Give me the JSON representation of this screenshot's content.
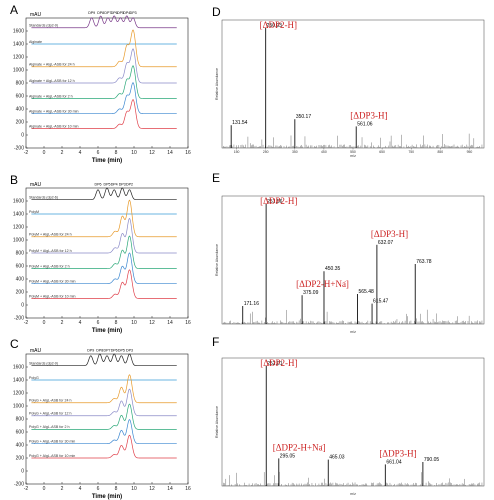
{
  "chart_data": [
    {
      "panel": "A",
      "type": "line",
      "xlabel": "Time (min)",
      "ylabel_unit": "mAU",
      "xlim": [
        -2,
        16
      ],
      "ylim": [
        -200,
        1800
      ],
      "xticks": [
        -2,
        0,
        2,
        4,
        6,
        8,
        10,
        12,
        14,
        16
      ],
      "yticks": [
        -200,
        0,
        200,
        400,
        600,
        800,
        1000,
        1200,
        1400,
        1600
      ],
      "peak_labels": [
        "DP9",
        "DP8",
        "DP7",
        "DP6",
        "DP5",
        "DP4",
        "DP3"
      ],
      "peak_times": [
        5.3,
        6.3,
        7.1,
        7.8,
        8.5,
        9.2,
        9.9
      ],
      "series": [
        {
          "name": "Standards (dp2-9)",
          "color": "#7a3a8a",
          "offset": 1650,
          "kind": "standards"
        },
        {
          "name": "Alginate",
          "color": "#3a9bd8",
          "offset": 1400,
          "kind": "flat"
        },
        {
          "name": "Alginate + AlgL-ASB for 24 h",
          "color": "#e89a2a",
          "offset": 1050,
          "kind": "reaction",
          "amp": 560
        },
        {
          "name": "Alginate + AlgL-ASB for 12 h",
          "color": "#8a8ac8",
          "offset": 800,
          "kind": "reaction",
          "amp": 520
        },
        {
          "name": "Alginate + AlgL-ASB for 2 h",
          "color": "#2aa878",
          "offset": 560,
          "kind": "reaction",
          "amp": 500
        },
        {
          "name": "Alginate + AlgL-ASB for 30 min",
          "color": "#3a86d0",
          "offset": 330,
          "kind": "reaction",
          "amp": 470
        },
        {
          "name": "Alginate + AlgL-ASB for 10 min",
          "color": "#e0404a",
          "offset": 100,
          "kind": "reaction",
          "amp": 440
        }
      ]
    },
    {
      "panel": "B",
      "type": "line",
      "xlabel": "Time (min)",
      "ylabel_unit": "mAU",
      "xlim": [
        -2,
        16
      ],
      "ylim": [
        -200,
        1800
      ],
      "xticks": [
        -2,
        0,
        2,
        4,
        6,
        8,
        10,
        12,
        14,
        16
      ],
      "yticks": [
        -200,
        0,
        200,
        400,
        600,
        800,
        1000,
        1200,
        1400,
        1600
      ],
      "peak_labels": [
        "DP6",
        "DP5",
        "DP4",
        "DP3",
        "DP2"
      ],
      "peak_times": [
        6.0,
        7.0,
        7.8,
        8.7,
        9.5
      ],
      "series": [
        {
          "name": "Standards (dp2-6)",
          "color": "#222222",
          "offset": 1620,
          "kind": "standards"
        },
        {
          "name": "PolyM",
          "color": "#3a9bd8",
          "offset": 1400,
          "kind": "flat"
        },
        {
          "name": "PolyM + AlgL-ASB for 24 h",
          "color": "#e89a2a",
          "offset": 1050,
          "kind": "reaction",
          "amp": 560
        },
        {
          "name": "PolyM + AlgL-ASB for 12 h",
          "color": "#8a8ac8",
          "offset": 800,
          "kind": "reaction",
          "amp": 530
        },
        {
          "name": "PolyM + AlgL-ASB for 2 h",
          "color": "#2aa878",
          "offset": 560,
          "kind": "reaction",
          "amp": 500
        },
        {
          "name": "PolyM + AlgL-ASB for 30 min",
          "color": "#3a86d0",
          "offset": 330,
          "kind": "reaction",
          "amp": 470
        },
        {
          "name": "PolyM + AlgL-ASB for 10 min",
          "color": "#e0404a",
          "offset": 100,
          "kind": "reaction",
          "amp": 440
        }
      ]
    },
    {
      "panel": "C",
      "type": "line",
      "xlabel": "Time (min)",
      "ylabel_unit": "mAU",
      "xlim": [
        -2,
        16
      ],
      "ylim": [
        -200,
        1800
      ],
      "xticks": [
        -2,
        0,
        2,
        4,
        6,
        8,
        10,
        12,
        14,
        16
      ],
      "yticks": [
        -200,
        0,
        200,
        400,
        600,
        800,
        1000,
        1200,
        1400,
        1600
      ],
      "peak_labels": [
        "DP9",
        "DP8",
        "DP7",
        "DP6",
        "DP5",
        "DP3"
      ],
      "peak_times": [
        5.2,
        6.2,
        7.0,
        7.8,
        8.6,
        9.5
      ],
      "series": [
        {
          "name": "Standards (dp2-9)",
          "color": "#222222",
          "offset": 1620,
          "kind": "standards"
        },
        {
          "name": "PolyG",
          "color": "#3a9bd8",
          "offset": 1400,
          "kind": "flat"
        },
        {
          "name": "PolyG + AlgL-ASB for 24 h",
          "color": "#e89a2a",
          "offset": 1050,
          "kind": "reaction",
          "amp": 430
        },
        {
          "name": "PolyG + AlgL-ASB for 12 h",
          "color": "#8a8ac8",
          "offset": 850,
          "kind": "reaction",
          "amp": 410
        },
        {
          "name": "PolyG + AlgL-ASB for 2 h",
          "color": "#2aa878",
          "offset": 640,
          "kind": "reaction",
          "amp": 390
        },
        {
          "name": "PolyG + AlgL-ASB for 30 min",
          "color": "#3a86d0",
          "offset": 420,
          "kind": "reaction",
          "amp": 370
        },
        {
          "name": "PolyG + AlgL-ASB for 10 min",
          "color": "#e0404a",
          "offset": 200,
          "kind": "reaction",
          "amp": 350
        }
      ]
    },
    {
      "panel": "D",
      "type": "bar",
      "xlabel": "m/z",
      "ylabel": "Relative Abundance",
      "xlim": [
        100,
        1000
      ],
      "xticks": [
        150,
        250,
        350,
        450,
        550,
        650,
        750,
        850,
        950
      ],
      "peaks": [
        {
          "mz": 250.03,
          "intensity": 100,
          "label": "250.03"
        },
        {
          "mz": 350.17,
          "intensity": 24,
          "label": "350.17"
        },
        {
          "mz": 561.06,
          "intensity": 18,
          "label": "561.06"
        },
        {
          "mz": 131.54,
          "intensity": 19,
          "label": "131.54"
        }
      ],
      "annotations": [
        {
          "text": "[ΔDP2-H]",
          "sup": "-",
          "near_mz": 250.03
        },
        {
          "text": "[ΔDP3-H]",
          "sup": "-",
          "near_mz": 561.06
        }
      ]
    },
    {
      "panel": "E",
      "type": "bar",
      "xlabel": "m/z",
      "ylabel": "Relative Abundance",
      "xlim": [
        100,
        1000
      ],
      "peaks": [
        {
          "mz": 251.56,
          "intensity": 100,
          "label": "251.56"
        },
        {
          "mz": 171.16,
          "intensity": 15,
          "label": "171.16"
        },
        {
          "mz": 375.09,
          "intensity": 24,
          "label": "375.09"
        },
        {
          "mz": 450.35,
          "intensity": 44,
          "label": "450.35"
        },
        {
          "mz": 565.48,
          "intensity": 25,
          "label": "565.48"
        },
        {
          "mz": 615.47,
          "intensity": 17,
          "label": "615.47"
        },
        {
          "mz": 632.07,
          "intensity": 66,
          "label": "632.07"
        },
        {
          "mz": 763.78,
          "intensity": 50,
          "label": "763.78"
        }
      ],
      "annotations": [
        {
          "text": "[ΔDP2-H]",
          "sup": "-",
          "near_mz": 251.56
        },
        {
          "text": "[ΔDP2-H+Na]",
          "sup": "-",
          "near_mz": 375.09
        },
        {
          "text": "[ΔDP3-H]",
          "sup": "-",
          "near_mz": 632.07
        }
      ]
    },
    {
      "panel": "F",
      "type": "bar",
      "xlabel": "m/z",
      "ylabel": "Relative Abundance",
      "xlim": [
        100,
        1000
      ],
      "peaks": [
        {
          "mz": 252.01,
          "intensity": 100,
          "label": "252.01"
        },
        {
          "mz": 295.05,
          "intensity": 23,
          "label": "295.05"
        },
        {
          "mz": 465.03,
          "intensity": 22,
          "label": "465.03"
        },
        {
          "mz": 661.04,
          "intensity": 18,
          "label": "661.04"
        },
        {
          "mz": 790.05,
          "intensity": 20,
          "label": "790.05"
        }
      ],
      "annotations": [
        {
          "text": "[ΔDP2-H]",
          "sup": "-",
          "near_mz": 252.01
        },
        {
          "text": "[ΔDP2-H+Na]",
          "sup": "-",
          "near_mz": 295.05
        },
        {
          "text": "[ΔDP3-H]",
          "sup": "-",
          "near_mz": 661.04
        }
      ]
    }
  ]
}
